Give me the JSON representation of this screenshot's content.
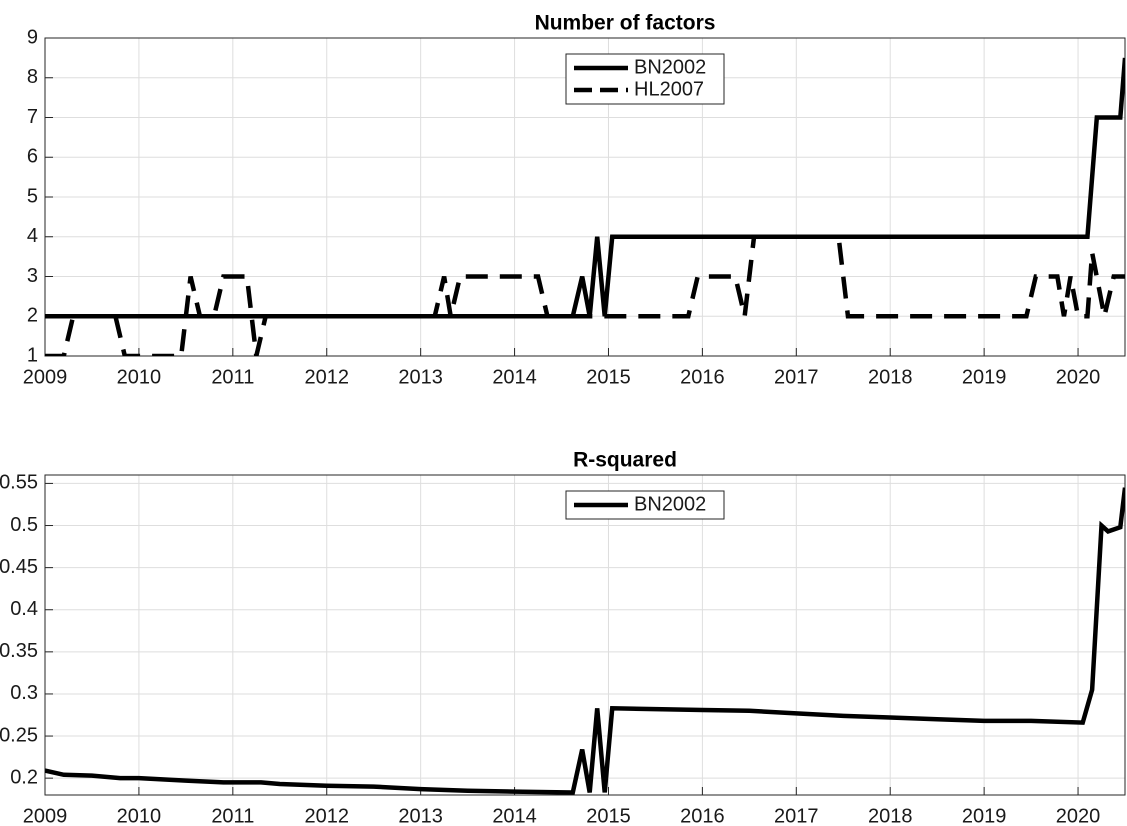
{
  "chart_data": [
    {
      "type": "line",
      "title": "Number of factors",
      "xlim": [
        2009,
        2020.5
      ],
      "xticks": [
        2009,
        2010,
        2011,
        2012,
        2013,
        2014,
        2015,
        2016,
        2017,
        2018,
        2019,
        2020
      ],
      "ylim": [
        1,
        9
      ],
      "yticks": [
        1,
        2,
        3,
        4,
        5,
        6,
        7,
        8,
        9
      ],
      "grid": true,
      "legend": "north",
      "series": [
        {
          "name": "BN2002",
          "color": "#000000",
          "linestyle": "solid",
          "x": [
            2009,
            2014.62,
            2014.72,
            2014.8,
            2014.88,
            2014.96,
            2015.04,
            2020.1,
            2020.2,
            2020.45,
            2020.5
          ],
          "values": [
            2,
            2,
            3,
            2,
            4,
            2,
            4,
            4,
            7,
            7,
            8.5
          ]
        },
        {
          "name": "HL2007",
          "color": "#000000",
          "linestyle": "dashed",
          "x": [
            2009,
            2009.2,
            2009.3,
            2009.75,
            2009.85,
            2010.45,
            2010.55,
            2010.65,
            2010.8,
            2010.9,
            2011.15,
            2011.25,
            2011.35,
            2013.15,
            2013.25,
            2013.32,
            2013.42,
            2014.25,
            2014.35,
            2015.85,
            2015.95,
            2016.35,
            2016.45,
            2016.55,
            2017.45,
            2017.55,
            2019.45,
            2019.55,
            2019.78,
            2019.85,
            2019.92,
            2020.0,
            2020.1,
            2020.15,
            2020.28,
            2020.38,
            2020.5
          ],
          "values": [
            1,
            1,
            2,
            2,
            1,
            1,
            3,
            2,
            2,
            3,
            3,
            1,
            2,
            2,
            3,
            2,
            3,
            3,
            2,
            2,
            3,
            3,
            2,
            4,
            4,
            2,
            2,
            3,
            3,
            2,
            3,
            2,
            2,
            3.6,
            2,
            3,
            3
          ]
        }
      ]
    },
    {
      "type": "line",
      "title": "R-squared",
      "xlim": [
        2009,
        2020.5
      ],
      "xticks": [
        2009,
        2010,
        2011,
        2012,
        2013,
        2014,
        2015,
        2016,
        2017,
        2018,
        2019,
        2020
      ],
      "ylim": [
        0.18,
        0.56
      ],
      "yticks": [
        0.2,
        0.25,
        0.3,
        0.35,
        0.4,
        0.45,
        0.5,
        0.55
      ],
      "grid": true,
      "legend": "north",
      "series": [
        {
          "name": "BN2002",
          "color": "#000000",
          "linestyle": "solid",
          "x": [
            2009,
            2009.2,
            2009.5,
            2009.8,
            2010,
            2010.5,
            2010.9,
            2011.3,
            2011.5,
            2012,
            2012.5,
            2013,
            2013.5,
            2014,
            2014.62,
            2014.72,
            2014.8,
            2014.88,
            2014.96,
            2015.04,
            2015.5,
            2016,
            2016.5,
            2017,
            2017.5,
            2018,
            2018.5,
            2019,
            2019.5,
            2020.05,
            2020.15,
            2020.25,
            2020.32,
            2020.45,
            2020.5
          ],
          "values": [
            0.209,
            0.204,
            0.203,
            0.2,
            0.2,
            0.197,
            0.195,
            0.195,
            0.193,
            0.191,
            0.19,
            0.187,
            0.185,
            0.184,
            0.183,
            0.234,
            0.183,
            0.283,
            0.183,
            0.283,
            0.282,
            0.281,
            0.28,
            0.277,
            0.274,
            0.272,
            0.27,
            0.268,
            0.268,
            0.266,
            0.305,
            0.5,
            0.493,
            0.498,
            0.545
          ]
        }
      ]
    }
  ]
}
